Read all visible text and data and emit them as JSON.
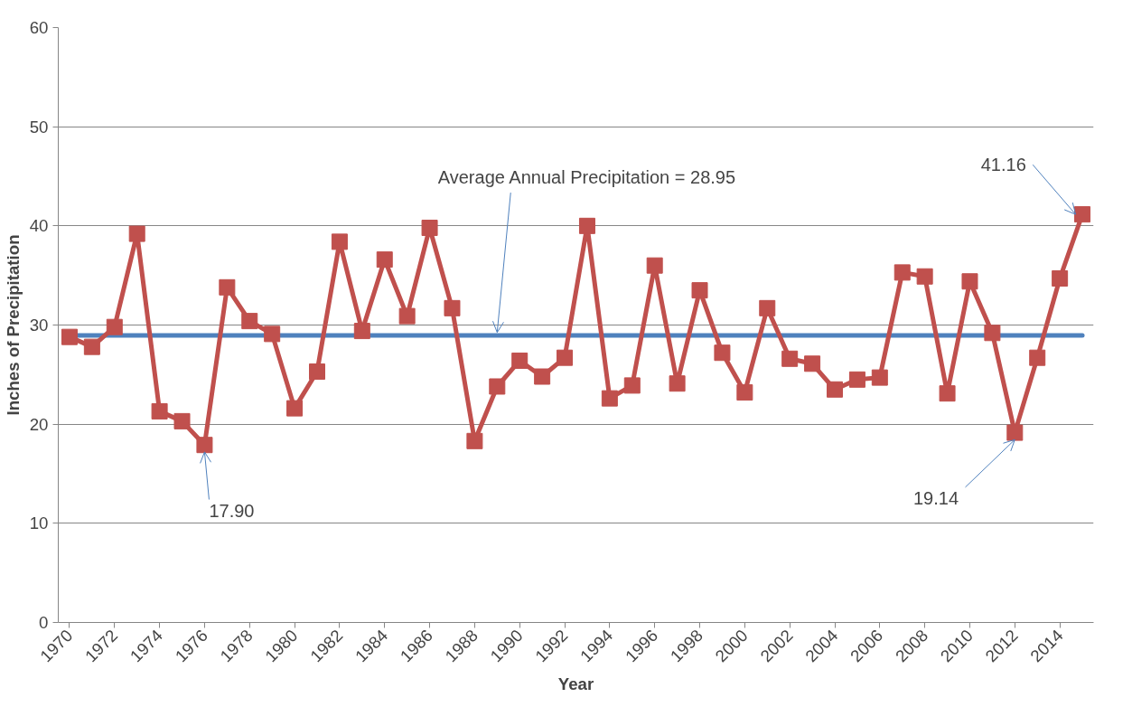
{
  "chart_data": {
    "type": "line",
    "xlabel": "Year",
    "ylabel": "Inches of Precipitation",
    "x": [
      1970,
      1971,
      1972,
      1973,
      1974,
      1975,
      1976,
      1977,
      1978,
      1979,
      1980,
      1981,
      1982,
      1983,
      1984,
      1985,
      1986,
      1987,
      1988,
      1989,
      1990,
      1991,
      1992,
      1993,
      1994,
      1995,
      1996,
      1997,
      1998,
      1999,
      2000,
      2001,
      2002,
      2003,
      2004,
      2005,
      2006,
      2007,
      2008,
      2009,
      2010,
      2011,
      2012,
      2013,
      2014,
      2015
    ],
    "series": [
      {
        "color": "#c0504d",
        "values": [
          28.8,
          27.8,
          29.8,
          39.2,
          21.3,
          20.3,
          17.9,
          33.8,
          30.4,
          29.1,
          21.6,
          25.3,
          38.4,
          29.4,
          36.6,
          30.9,
          39.8,
          31.7,
          18.3,
          23.8,
          26.4,
          24.8,
          26.7,
          40.0,
          22.6,
          23.9,
          36.0,
          24.1,
          33.5,
          27.2,
          23.2,
          31.7,
          26.6,
          26.1,
          23.5,
          24.5,
          24.7,
          35.3,
          34.9,
          23.1,
          34.4,
          29.2,
          19.14,
          26.7,
          34.7,
          41.16
        ]
      }
    ],
    "marker": "square",
    "line_style": "solid",
    "grid": "y",
    "xlim": [
      1969.5,
      2015.5
    ],
    "xticks": [
      1970,
      1972,
      1974,
      1976,
      1978,
      1980,
      1982,
      1984,
      1986,
      1988,
      1990,
      1992,
      1994,
      1996,
      1998,
      2000,
      2002,
      2004,
      2006,
      2008,
      2010,
      2012,
      2014
    ],
    "ylim": [
      0,
      60
    ],
    "yticks": [
      0,
      10,
      20,
      30,
      40,
      50,
      60
    ],
    "ref_lines": [
      {
        "axis": "y",
        "value": 28.95,
        "color": "#4f81bd",
        "line_style": "solid"
      }
    ],
    "annotations": [
      {
        "text": "Average Annual Precipitation = 28.95",
        "x": 1989,
        "y": 28.95
      },
      {
        "text": "17.90",
        "x": 1976,
        "y": 17.9
      },
      {
        "text": "19.14",
        "x": 2012,
        "y": 19.14
      },
      {
        "text": "41.16",
        "x": 2015,
        "y": 41.16
      }
    ]
  }
}
